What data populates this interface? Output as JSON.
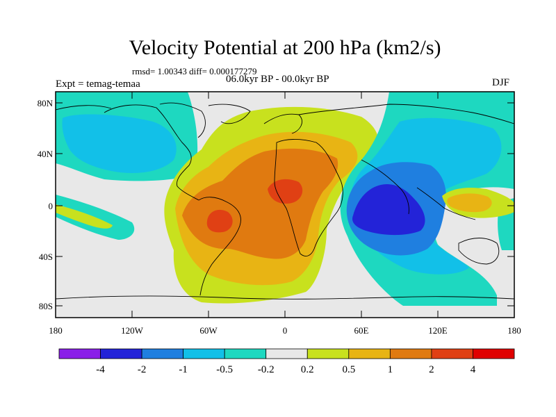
{
  "title": "Velocity Potential at 200 hPa (km2/s)",
  "stats": "rmsd= 1.00343 diff= 0.000177279",
  "left_label": "Expt = temag-temaa",
  "center_label": "06.0kyr BP - 00.0kyr BP",
  "right_label": "DJF",
  "lat_ticks": [
    "80N",
    "40N",
    "0",
    "40S",
    "80S"
  ],
  "lon_ticks": [
    "180",
    "120W",
    "60W",
    "0",
    "60E",
    "120E",
    "180"
  ],
  "colorbar": {
    "labels": [
      "-4",
      "-2",
      "-1",
      "-0.5",
      "-0.2",
      "0.2",
      "0.5",
      "1",
      "2",
      "4"
    ],
    "colors": [
      "#8a1ee8",
      "#2323d8",
      "#1f7fe0",
      "#12c0e8",
      "#1ed8c0",
      "#e8e8e8",
      "#c8e11e",
      "#e8b414",
      "#e07a10",
      "#e04014",
      "#e00000"
    ]
  },
  "palette": {
    "neutral": "#e8e8e8",
    "low_teal": "#1ed8c0",
    "low_cyan": "#12c0e8",
    "low_blue": "#1f7fe0",
    "low_dark": "#2323d8",
    "high_lime": "#c8e11e",
    "high_amber": "#e8b414",
    "high_orange": "#e07a10",
    "high_red": "#e04014"
  }
}
